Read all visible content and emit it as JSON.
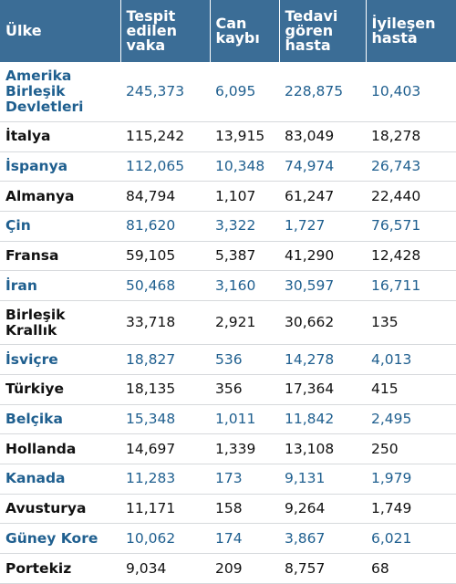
{
  "table": {
    "columns": [
      "Ülke",
      "Tespit edilen vaka",
      "Can kaybı",
      "Tedavi gören hasta",
      "İyileşen hasta"
    ],
    "rows": [
      {
        "country": "Amerika Birleşik Devletleri",
        "cases": "245,373",
        "deaths": "6,095",
        "treated": "228,875",
        "recovered": "10,403"
      },
      {
        "country": "İtalya",
        "cases": "115,242",
        "deaths": "13,915",
        "treated": "83,049",
        "recovered": "18,278"
      },
      {
        "country": "İspanya",
        "cases": "112,065",
        "deaths": "10,348",
        "treated": "74,974",
        "recovered": "26,743"
      },
      {
        "country": "Almanya",
        "cases": "84,794",
        "deaths": "1,107",
        "treated": "61,247",
        "recovered": "22,440"
      },
      {
        "country": "Çin",
        "cases": "81,620",
        "deaths": "3,322",
        "treated": "1,727",
        "recovered": "76,571"
      },
      {
        "country": "Fransa",
        "cases": "59,105",
        "deaths": "5,387",
        "treated": "41,290",
        "recovered": "12,428"
      },
      {
        "country": "İran",
        "cases": "50,468",
        "deaths": "3,160",
        "treated": "30,597",
        "recovered": "16,711"
      },
      {
        "country": "Birleşik Krallık",
        "cases": "33,718",
        "deaths": "2,921",
        "treated": "30,662",
        "recovered": "135"
      },
      {
        "country": "İsviçre",
        "cases": "18,827",
        "deaths": "536",
        "treated": "14,278",
        "recovered": "4,013"
      },
      {
        "country": "Türkiye",
        "cases": "18,135",
        "deaths": "356",
        "treated": "17,364",
        "recovered": "415"
      },
      {
        "country": "Belçika",
        "cases": "15,348",
        "deaths": "1,011",
        "treated": "11,842",
        "recovered": "2,495"
      },
      {
        "country": "Hollanda",
        "cases": "14,697",
        "deaths": "1,339",
        "treated": "13,108",
        "recovered": "250"
      },
      {
        "country": "Kanada",
        "cases": "11,283",
        "deaths": "173",
        "treated": "9,131",
        "recovered": "1,979"
      },
      {
        "country": "Avusturya",
        "cases": "11,171",
        "deaths": "158",
        "treated": "9,264",
        "recovered": "1,749"
      },
      {
        "country": "Güney Kore",
        "cases": "10,062",
        "deaths": "174",
        "treated": "3,867",
        "recovered": "6,021"
      },
      {
        "country": "Portekiz",
        "cases": "9,034",
        "deaths": "209",
        "treated": "8,757",
        "recovered": "68"
      }
    ]
  }
}
